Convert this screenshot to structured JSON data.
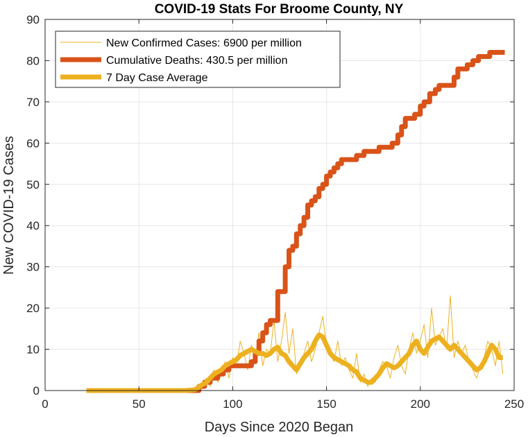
{
  "colors": {
    "cases": "#EDB120",
    "deaths": "#D95319",
    "average": "#EDB120",
    "grid": "#E6E6E6",
    "axis": "#262626"
  },
  "chart_data": {
    "type": "line",
    "title": "COVID-19 Stats For Broome County, NY",
    "xlabel": "Days Since 2020 Began",
    "ylabel": "New COVID-19 Cases",
    "xlim": [
      0,
      250
    ],
    "ylim": [
      0,
      90
    ],
    "xticks": [
      0,
      50,
      100,
      150,
      200,
      250
    ],
    "yticks": [
      0,
      10,
      20,
      30,
      40,
      50,
      60,
      70,
      80,
      90
    ],
    "grid": true,
    "legend_location": "top-left",
    "series": [
      {
        "name": "New Confirmed Cases: 6900 per million",
        "style": "thin",
        "x": [
          22,
          40,
          60,
          75,
          80,
          83,
          86,
          88,
          90,
          92,
          94,
          96,
          98,
          100,
          102,
          104,
          106,
          108,
          110,
          112,
          114,
          116,
          118,
          120,
          122,
          124,
          126,
          128,
          130,
          132,
          134,
          136,
          138,
          140,
          142,
          144,
          146,
          148,
          150,
          152,
          154,
          156,
          158,
          160,
          162,
          164,
          166,
          168,
          170,
          172,
          174,
          176,
          178,
          180,
          182,
          184,
          186,
          188,
          190,
          192,
          194,
          196,
          198,
          200,
          202,
          204,
          206,
          208,
          210,
          212,
          214,
          216,
          218,
          220,
          222,
          224,
          226,
          228,
          230,
          232,
          234,
          236,
          238,
          240,
          242,
          244
        ],
        "y": [
          0,
          0,
          0,
          0,
          0,
          1,
          3,
          1,
          5,
          2,
          4,
          7,
          3,
          8,
          6,
          12,
          9,
          5,
          11,
          8,
          14,
          6,
          10,
          9,
          17,
          7,
          12,
          19,
          9,
          15,
          4,
          6,
          9,
          12,
          7,
          10,
          14,
          18,
          11,
          9,
          7,
          12,
          6,
          8,
          5,
          3,
          9,
          2,
          4,
          1,
          3,
          2,
          5,
          7,
          6,
          3,
          8,
          11,
          6,
          4,
          10,
          14,
          9,
          12,
          16,
          8,
          20,
          11,
          13,
          15,
          10,
          23,
          8,
          12,
          9,
          11,
          7,
          5,
          3,
          6,
          8,
          12,
          10,
          6,
          12,
          4
        ]
      },
      {
        "name": "Cumulative Deaths: 430.5 per million",
        "style": "step",
        "x": [
          22,
          40,
          60,
          75,
          80,
          82,
          85,
          88,
          90,
          92,
          95,
          98,
          100,
          102,
          105,
          108,
          110,
          112,
          114,
          116,
          118,
          120,
          122,
          124,
          126,
          128,
          130,
          132,
          134,
          136,
          138,
          140,
          142,
          144,
          146,
          148,
          150,
          152,
          154,
          156,
          158,
          160,
          162,
          164,
          166,
          168,
          170,
          172,
          175,
          178,
          180,
          182,
          185,
          188,
          190,
          192,
          195,
          197,
          200,
          202,
          205,
          208,
          210,
          212,
          215,
          218,
          220,
          225,
          228,
          231,
          234,
          237,
          240,
          245
        ],
        "y": [
          0,
          0,
          0,
          0,
          0,
          1,
          2,
          3,
          3,
          4,
          5,
          6,
          6,
          6,
          6,
          6,
          7,
          9,
          12,
          14,
          16,
          17,
          17,
          24,
          24,
          30,
          34,
          35,
          38,
          40,
          42,
          45,
          46,
          47,
          49,
          50,
          52,
          53,
          54,
          55,
          56,
          56,
          56,
          56,
          57,
          57,
          58,
          58,
          58,
          59,
          59,
          59,
          60,
          62,
          64,
          66,
          66,
          67,
          69,
          70,
          72,
          73,
          74,
          74,
          74,
          76,
          78,
          79,
          80,
          81,
          81,
          82,
          82,
          82
        ]
      },
      {
        "name": "7 Day Case Average",
        "style": "thick",
        "x": [
          22,
          40,
          60,
          75,
          80,
          83,
          86,
          88,
          90,
          92,
          94,
          96,
          98,
          100,
          102,
          104,
          106,
          108,
          110,
          112,
          114,
          116,
          118,
          120,
          122,
          124,
          126,
          128,
          130,
          132,
          134,
          136,
          138,
          140,
          142,
          144,
          146,
          148,
          150,
          152,
          154,
          156,
          158,
          160,
          162,
          164,
          166,
          168,
          170,
          172,
          174,
          176,
          178,
          180,
          182,
          184,
          186,
          188,
          190,
          192,
          194,
          196,
          198,
          200,
          202,
          204,
          206,
          208,
          210,
          212,
          214,
          216,
          218,
          220,
          222,
          224,
          226,
          228,
          230,
          232,
          234,
          236,
          238,
          240,
          242,
          244
        ],
        "y": [
          0,
          0,
          0,
          0,
          0.2,
          1.2,
          2,
          3,
          4,
          4.5,
          5,
          6,
          6.5,
          7,
          7.5,
          8.5,
          9,
          9.5,
          10,
          9.5,
          9,
          9,
          8.5,
          9,
          10,
          10.5,
          9,
          8.5,
          7,
          6,
          5,
          6.5,
          8,
          9,
          10,
          12,
          13.5,
          13,
          11,
          9,
          8,
          7.5,
          7,
          6.5,
          6,
          5,
          4.5,
          3,
          2.5,
          2,
          2,
          3,
          4,
          5.5,
          6.5,
          6,
          5.5,
          6,
          7,
          8,
          9,
          11,
          12,
          10,
          9,
          10.5,
          12,
          12.5,
          13,
          12,
          11,
          10,
          11,
          10,
          9,
          8,
          7,
          6,
          5,
          5.5,
          7,
          9,
          11,
          10,
          8,
          8
        ]
      }
    ]
  }
}
